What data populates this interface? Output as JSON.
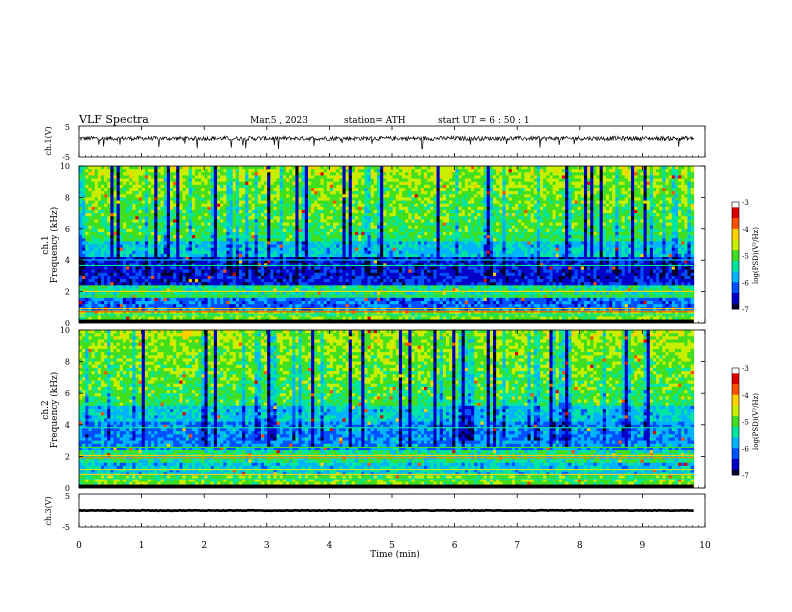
{
  "header": {
    "title": "VLF Spectra",
    "date": "Mar.5 , 2023",
    "station": "station= ATH",
    "start": "start UT = 6 : 50 : 1"
  },
  "chart_data": [
    {
      "type": "line",
      "name": "ch1-waveform",
      "ylabel": "ch.1(V)",
      "ylim": [
        -5,
        5
      ],
      "ytick_labels": [
        "5",
        "-5"
      ],
      "xlim": [
        0,
        10
      ],
      "baseline_v": 1.0,
      "noise_v": 0.7
    },
    {
      "type": "heatmap",
      "name": "ch1-spectrogram",
      "ylabel_line1": "ch.1",
      "ylabel_line2": "Frequency (kHz)",
      "ylim": [
        0,
        10
      ],
      "ytick_labels": [
        "0",
        "2",
        "4",
        "6",
        "8",
        "10"
      ],
      "xlim": [
        0,
        9.8
      ],
      "colorbar": {
        "label": "log(PSD)(V²/Hz)",
        "range": [
          -7,
          -3
        ],
        "tick_labels": [
          "-3",
          "-4",
          "-5",
          "-6",
          "-7"
        ]
      }
    },
    {
      "type": "heatmap",
      "name": "ch2-spectrogram",
      "ylabel_line1": "ch.2",
      "ylabel_line2": "Frequency (kHz)",
      "ylim": [
        0,
        10
      ],
      "ytick_labels": [
        "0",
        "2",
        "4",
        "6",
        "8",
        "10"
      ],
      "xlim": [
        0,
        9.8
      ],
      "colorbar": {
        "label": "log(PSD)(V²/Hz)",
        "range": [
          -7,
          -3
        ],
        "tick_labels": [
          "-3",
          "-4",
          "-5",
          "-6",
          "-7"
        ]
      }
    },
    {
      "type": "line",
      "name": "ch3-waveform",
      "ylabel": "ch.3(V)",
      "ylim": [
        -5,
        5
      ],
      "ytick_labels": [
        "5",
        "-5"
      ],
      "xlim": [
        0,
        10
      ],
      "baseline_v": 0.0,
      "noise_v": 0.1
    }
  ],
  "xaxis": {
    "label": "Time (min)",
    "range": [
      0,
      10
    ],
    "tick_labels": [
      "0",
      "1",
      "2",
      "3",
      "4",
      "5",
      "6",
      "7",
      "8",
      "9",
      "10"
    ]
  },
  "colors": {
    "colormap": [
      "#000033",
      "#0000c8",
      "#0050ff",
      "#00b4ff",
      "#00e6a0",
      "#40e020",
      "#c8ee00",
      "#ffd000",
      "#ff5000",
      "#dd0000",
      "#ffffff"
    ]
  }
}
